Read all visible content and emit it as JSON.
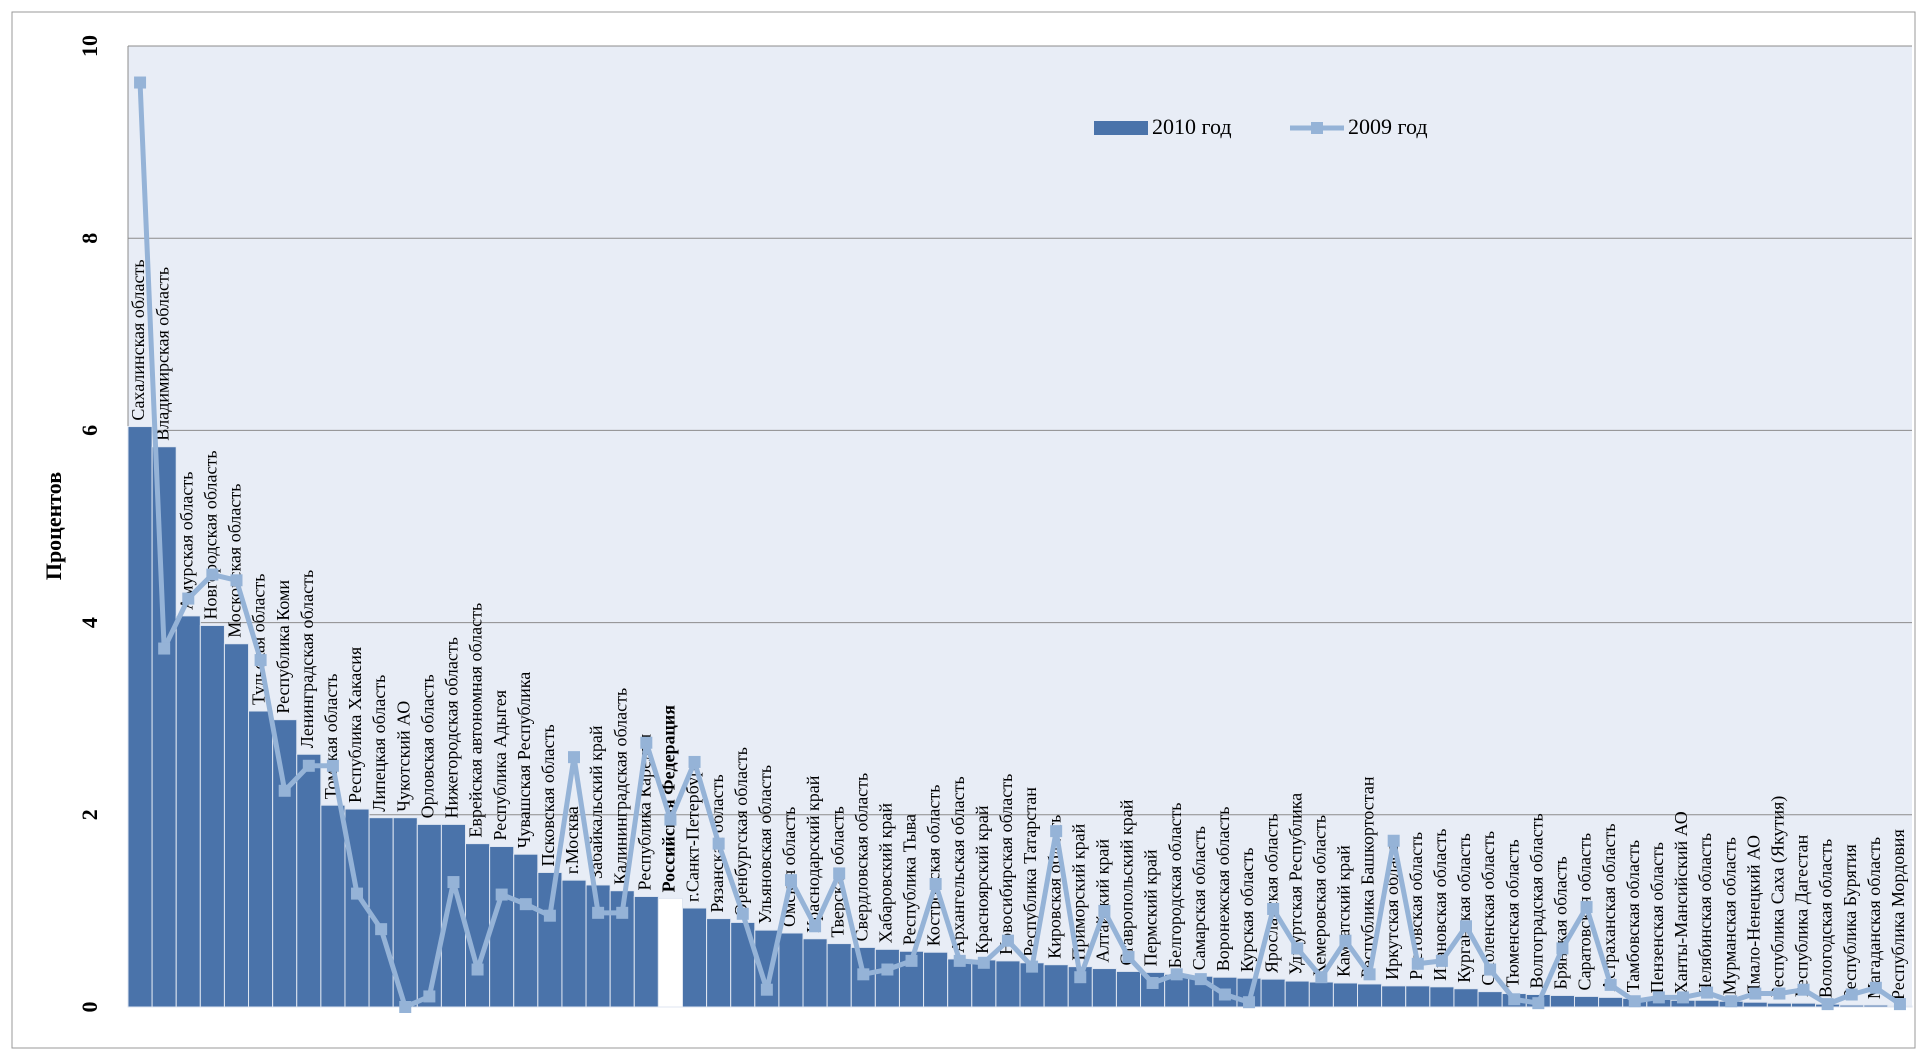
{
  "chart_data": {
    "type": "bar-line",
    "y_label": "Процентов",
    "categories": [
      "Сахалинская область",
      "Владимирская область",
      "Амурская область",
      "Новгородская область",
      "Московская область",
      "Тульская область",
      "Республика Коми",
      "Ленинградская область",
      "Томская область",
      "Республика Хакасия",
      "Липецкая область",
      "Чукотский АО",
      "Орловская область",
      "Нижегородская область",
      "Еврейская автономная область",
      "Республика Адыгея",
      "Чувашская Республика",
      "Псковская область",
      "г.Москва",
      "Забайкальский край",
      "Калининградская область",
      "Республика Карелия",
      "Российская Федерация",
      "г.Санкт-Петербург",
      "Рязанская область",
      "Оренбургская область",
      "Ульяновская область",
      "Омская область",
      "Краснодарский край",
      "Тверская область",
      "Свердловская область",
      "Хабаровский край",
      "Республика Тыва",
      "Костромская область",
      "Архангельская область",
      "Красноярский край",
      "Новосибирская область",
      "Республика Татарстан",
      "Кировская область",
      "Приморский край",
      "Алтайский край",
      "Ставропольский край",
      "Пермский край",
      "Белгородская область",
      "Самарская область",
      "Воронежская область",
      "Курская область",
      "Ярославская область",
      "Удмуртская Республика",
      "Кемеровская область",
      "Камчатский край",
      "Республика Башкортостан",
      "Иркутская область",
      "Ростовская область",
      "Ивановская область",
      "Курганская область",
      "Смоленская область",
      "Тюменская область",
      "Волгоградская область",
      "Брянская область",
      "Саратовская область",
      "Астраханская область",
      "Тамбовская область",
      "Пензенская область",
      "Ханты-Мансийский АО",
      "Челябинская область",
      "Мурманская область",
      "Ямало-Ненецкий АО",
      "Республика Саха (Якутия)",
      "Республика Дагестан",
      "Вологодская область",
      "Республика Бурятия",
      "Магаданская область",
      "Республика Мордовия"
    ],
    "highlight_index": 22,
    "highlight_color": "#ffffff",
    "series": [
      {
        "name": "2010 год",
        "kind": "bar",
        "color": "#4a73aa",
        "values": [
          6.04,
          5.83,
          4.07,
          3.97,
          3.78,
          3.08,
          2.99,
          2.63,
          2.1,
          2.06,
          1.97,
          1.97,
          1.9,
          1.9,
          1.7,
          1.67,
          1.59,
          1.4,
          1.32,
          1.27,
          1.21,
          1.15,
          1.13,
          1.03,
          0.92,
          0.88,
          0.8,
          0.77,
          0.71,
          0.66,
          0.62,
          0.6,
          0.58,
          0.57,
          0.5,
          0.49,
          0.48,
          0.46,
          0.44,
          0.42,
          0.4,
          0.37,
          0.36,
          0.34,
          0.32,
          0.31,
          0.3,
          0.29,
          0.27,
          0.26,
          0.25,
          0.24,
          0.22,
          0.22,
          0.21,
          0.19,
          0.16,
          0.14,
          0.13,
          0.12,
          0.11,
          0.1,
          0.09,
          0.08,
          0.07,
          0.07,
          0.06,
          0.05,
          0.04,
          0.04,
          0.03,
          0.02,
          0.02,
          0.01
        ]
      },
      {
        "name": "2009 год",
        "kind": "line",
        "color": "#95b3d7",
        "values": [
          9.62,
          3.73,
          4.25,
          4.5,
          4.44,
          3.61,
          2.25,
          2.51,
          2.51,
          1.18,
          0.81,
          0.0,
          0.11,
          1.3,
          0.39,
          1.17,
          1.07,
          0.95,
          2.6,
          0.98,
          0.98,
          2.75,
          1.95,
          2.55,
          1.7,
          0.97,
          0.18,
          1.32,
          0.84,
          1.39,
          0.34,
          0.39,
          0.48,
          1.28,
          0.48,
          0.46,
          0.69,
          0.42,
          1.83,
          0.31,
          1.0,
          0.52,
          0.25,
          0.34,
          0.29,
          0.13,
          0.05,
          1.02,
          0.61,
          0.31,
          0.69,
          0.34,
          1.73,
          0.45,
          0.48,
          0.84,
          0.39,
          0.08,
          0.04,
          0.61,
          1.04,
          0.23,
          0.06,
          0.1,
          0.1,
          0.15,
          0.06,
          0.14,
          0.14,
          0.18,
          0.03,
          0.13,
          0.2,
          0.03
        ]
      }
    ],
    "ylim": [
      0,
      10
    ],
    "yticks": [
      0,
      2,
      4,
      6,
      8,
      10
    ],
    "grid": true
  }
}
